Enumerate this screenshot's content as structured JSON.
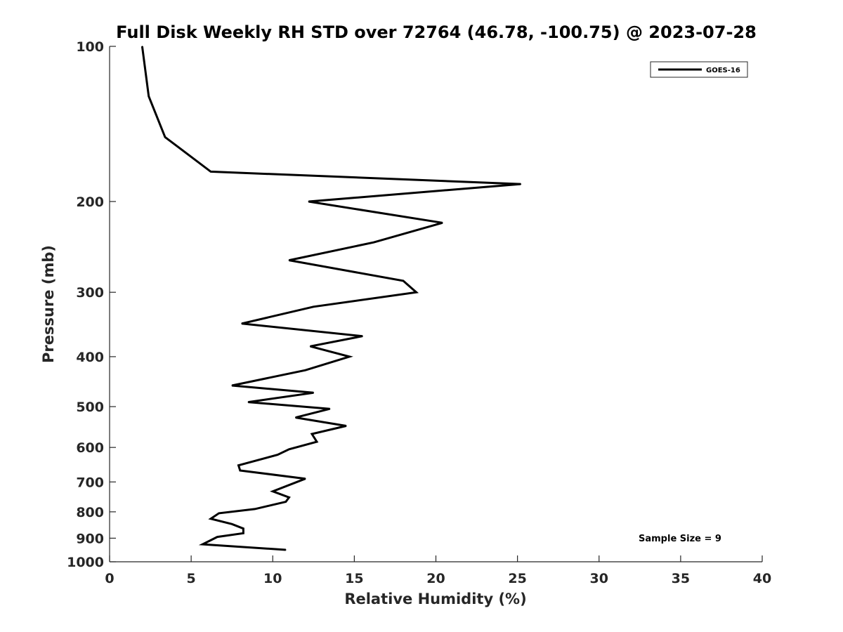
{
  "chart_data": {
    "type": "line",
    "title": "Full Disk Weekly RH STD over 72764 (46.78, -100.75) @ 2023-07-28",
    "xlabel": "Relative Humidity (%)",
    "ylabel": "Pressure (mb)",
    "xlim": [
      0,
      40
    ],
    "ylim": [
      100,
      1000
    ],
    "y_scale": "log",
    "y_reversed": true,
    "x_ticks": [
      0,
      5,
      10,
      15,
      20,
      25,
      30,
      35,
      40
    ],
    "x_tick_labels": [
      "0",
      "5",
      "10",
      "15",
      "20",
      "25",
      "30",
      "35",
      "40"
    ],
    "y_ticks": [
      100,
      200,
      300,
      400,
      500,
      600,
      700,
      800,
      900,
      1000
    ],
    "y_tick_labels": [
      "100",
      "200",
      "300",
      "400",
      "500",
      "600",
      "700",
      "800",
      "900",
      "1000"
    ],
    "grid": false,
    "legend_position": "top-right",
    "annotation": "Sample Size = 9",
    "series": [
      {
        "name": "GOES-16",
        "color": "#000000",
        "points": [
          [
            2.0,
            100
          ],
          [
            2.4,
            125
          ],
          [
            3.4,
            150
          ],
          [
            6.2,
            175
          ],
          [
            25.2,
            185
          ],
          [
            12.2,
            200
          ],
          [
            20.4,
            220
          ],
          [
            16.2,
            240
          ],
          [
            11.0,
            260
          ],
          [
            18.0,
            285
          ],
          [
            18.8,
            300
          ],
          [
            12.5,
            320
          ],
          [
            8.1,
            345
          ],
          [
            15.5,
            365
          ],
          [
            12.3,
            382
          ],
          [
            14.7,
            400
          ],
          [
            12.0,
            425
          ],
          [
            7.5,
            455
          ],
          [
            12.5,
            470
          ],
          [
            8.5,
            490
          ],
          [
            13.5,
            505
          ],
          [
            11.4,
            525
          ],
          [
            14.5,
            545
          ],
          [
            12.4,
            565
          ],
          [
            12.7,
            585
          ],
          [
            11.0,
            605
          ],
          [
            10.3,
            620
          ],
          [
            7.9,
            650
          ],
          [
            8.0,
            665
          ],
          [
            12.0,
            690
          ],
          [
            10.0,
            730
          ],
          [
            11.0,
            750
          ],
          [
            10.8,
            765
          ],
          [
            8.9,
            790
          ],
          [
            6.7,
            805
          ],
          [
            6.2,
            825
          ],
          [
            7.5,
            845
          ],
          [
            8.2,
            862
          ],
          [
            8.2,
            880
          ],
          [
            6.6,
            895
          ],
          [
            5.7,
            925
          ],
          [
            10.8,
            948
          ]
        ]
      }
    ]
  }
}
